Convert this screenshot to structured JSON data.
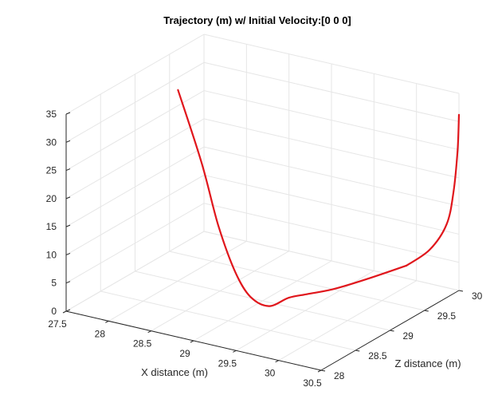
{
  "chart_data": {
    "type": "line",
    "projection": "3d",
    "title": "Trajectory (m) w/ Initial Velocity:[0  0  0]",
    "xlabel": "X distance (m)",
    "ylabel": "Z distance (m)",
    "zlabel": "",
    "xlim": [
      27.5,
      30.5
    ],
    "ylim": [
      28,
      30
    ],
    "zlim": [
      0,
      35
    ],
    "x_ticks": [
      "27.5",
      "28",
      "28.5",
      "29",
      "29.5",
      "30",
      "30.5"
    ],
    "y_ticks": [
      "28",
      "28.5",
      "29",
      "29.5",
      "30"
    ],
    "z_ticks": [
      "0",
      "5",
      "10",
      "15",
      "20",
      "25",
      "30",
      "35"
    ],
    "grid": true,
    "line_color": "#e0161c",
    "series": [
      {
        "x": [
          27.6,
          28.0,
          28.4,
          28.8,
          29.1,
          29.4,
          29.65,
          29.85,
          30.05,
          30.25,
          30.45
        ],
        "y": [
          29.5,
          29.35,
          29.1,
          28.85,
          28.7,
          28.6,
          28.58,
          28.6,
          28.72,
          28.95,
          29.3
        ],
        "z": [
          29.0,
          18.5,
          10.5,
          5.5,
          3.2,
          3.3,
          5.8,
          7.0,
          7.7,
          8.5,
          9.2
        ]
      },
      {
        "x": [
          30.45,
          30.48,
          30.5,
          30.5,
          30.5,
          30.5
        ],
        "y": [
          29.3,
          29.6,
          29.82,
          29.92,
          29.98,
          30.0
        ],
        "z": [
          9.2,
          10.0,
          13.0,
          18.0,
          25.0,
          31.2
        ]
      }
    ]
  }
}
